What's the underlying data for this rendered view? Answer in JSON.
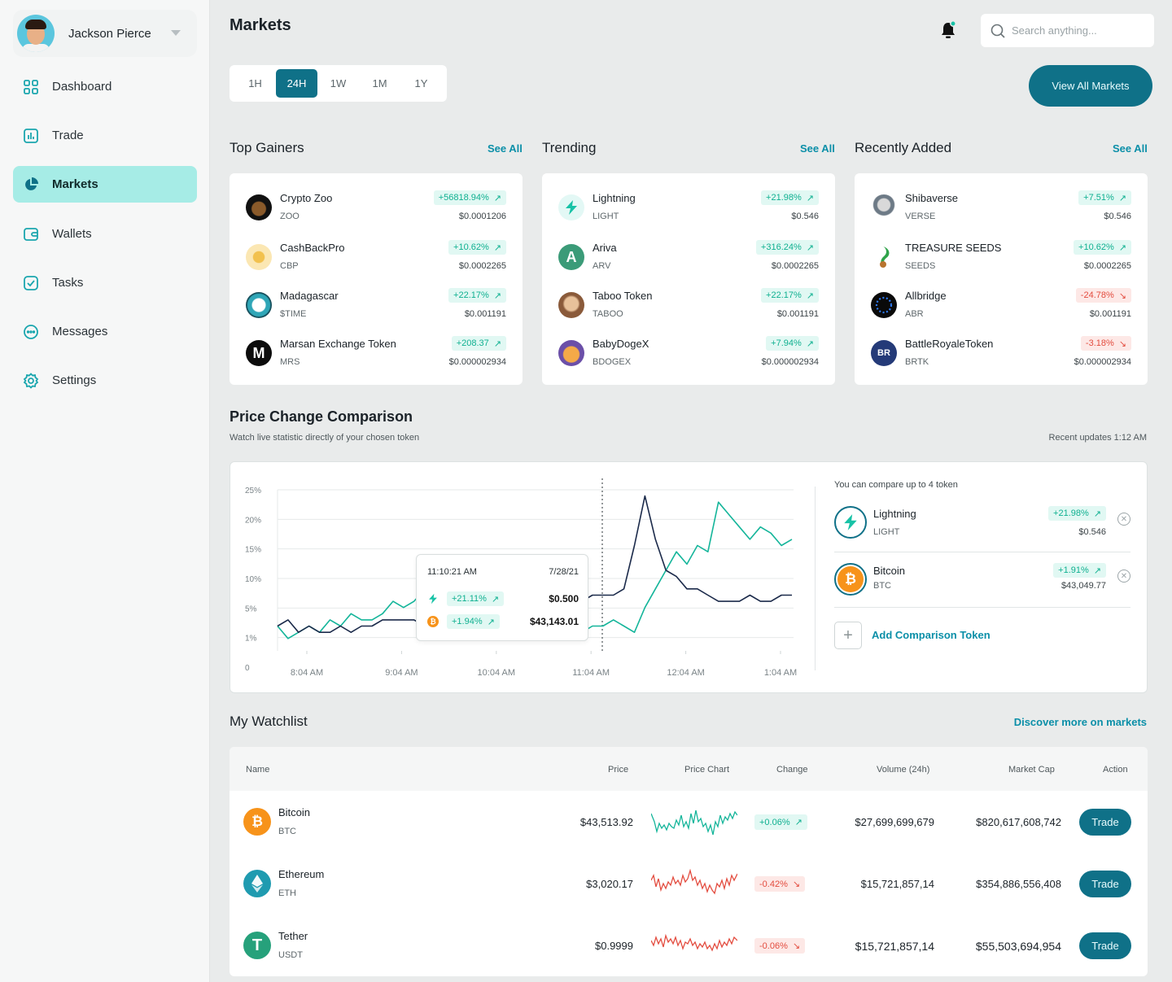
{
  "user": {
    "name": "Jackson Pierce"
  },
  "nav": [
    {
      "label": "Dashboard",
      "icon": "grid-icon"
    },
    {
      "label": "Trade",
      "icon": "chart-bars-icon"
    },
    {
      "label": "Markets",
      "icon": "pie-chart-icon",
      "active": true
    },
    {
      "label": "Wallets",
      "icon": "wallet-icon"
    },
    {
      "label": "Tasks",
      "icon": "checkbox-icon"
    },
    {
      "label": "Messages",
      "icon": "message-icon"
    },
    {
      "label": "Settings",
      "icon": "gear-icon"
    }
  ],
  "header": {
    "title": "Markets",
    "search_placeholder": "Search anything..."
  },
  "timeframes": [
    "1H",
    "24H",
    "1W",
    "1M",
    "1Y"
  ],
  "active_timeframe": "24H",
  "view_all": "View All Markets",
  "see_all": "See All",
  "sections": {
    "top_gainers": {
      "title": "Top Gainers",
      "items": [
        {
          "name": "Crypto Zoo",
          "symbol": "ZOO",
          "change": "+56818.94%",
          "dir": "up",
          "price": "$0.0001206"
        },
        {
          "name": "CashBackPro",
          "symbol": "CBP",
          "change": "+10.62%",
          "dir": "up",
          "price": "$0.0002265"
        },
        {
          "name": "Madagascar",
          "symbol": "$TIME",
          "change": "+22.17%",
          "dir": "up",
          "price": "$0.001191"
        },
        {
          "name": "Marsan Exchange Token",
          "symbol": "MRS",
          "change": "+208.37",
          "dir": "up",
          "price": "$0.000002934"
        }
      ]
    },
    "trending": {
      "title": "Trending",
      "items": [
        {
          "name": "Lightning",
          "symbol": "LIGHT",
          "change": "+21.98%",
          "dir": "up",
          "price": "$0.546"
        },
        {
          "name": "Ariva",
          "symbol": "ARV",
          "change": "+316.24%",
          "dir": "up",
          "price": "$0.0002265"
        },
        {
          "name": "Taboo Token",
          "symbol": "TABOO",
          "change": "+22.17%",
          "dir": "up",
          "price": "$0.001191"
        },
        {
          "name": "BabyDogeX",
          "symbol": "BDOGEX",
          "change": "+7.94%",
          "dir": "up",
          "price": "$0.000002934"
        }
      ]
    },
    "recently_added": {
      "title": "Recently Added",
      "items": [
        {
          "name": "Shibaverse",
          "symbol": "VERSE",
          "change": "+7.51%",
          "dir": "up",
          "price": "$0.546"
        },
        {
          "name": "TREASURE SEEDS",
          "symbol": "SEEDS",
          "change": "+10.62%",
          "dir": "up",
          "price": "$0.0002265"
        },
        {
          "name": "Allbridge",
          "symbol": "ABR",
          "change": "-24.78%",
          "dir": "down",
          "price": "$0.001191"
        },
        {
          "name": "BattleRoyaleToken",
          "symbol": "BRTK",
          "change": "-3.18%",
          "dir": "down",
          "price": "$0.000002934"
        }
      ]
    }
  },
  "price_comparison": {
    "title": "Price Change Comparison",
    "subtitle": "Watch live statistic directly of your chosen token",
    "updated": "Recent updates 1:12 AM",
    "tooltip": {
      "time": "11:10:21 AM",
      "date": "7/28/21",
      "rows": [
        {
          "change": "+21.11%",
          "value": "$0.500"
        },
        {
          "change": "+1.94%",
          "value": "$43,143.01"
        }
      ]
    },
    "compare_note": "You can compare up to 4 token",
    "compare": [
      {
        "name": "Lightning",
        "symbol": "LIGHT",
        "change": "+21.98%",
        "price": "$0.546"
      },
      {
        "name": "Bitcoin",
        "symbol": "BTC",
        "change": "+1.91%",
        "price": "$43,049.77"
      }
    ],
    "add_label": "Add Comparison Token"
  },
  "chart_data": {
    "type": "line",
    "y_ticks": [
      "25%",
      "20%",
      "15%",
      "10%",
      "5%",
      "1%",
      "0"
    ],
    "x_ticks": [
      "8:04 AM",
      "9:04 AM",
      "10:04 AM",
      "11:04 AM",
      "12:04 AM",
      "1:04 AM"
    ],
    "colors": {
      "teal": "#14b59a",
      "navy": "#1b2a4a"
    },
    "series": [
      {
        "values": [
          4,
          2,
          3,
          4,
          3,
          5,
          4,
          6,
          5,
          5,
          6,
          8,
          7,
          8,
          10,
          7,
          8,
          4,
          5,
          4,
          5,
          7,
          8,
          6,
          9,
          10,
          10,
          7,
          5,
          3,
          4,
          4,
          5,
          4,
          3,
          7,
          10,
          13,
          16,
          14,
          17,
          16,
          24,
          22,
          20,
          18,
          20,
          19,
          17,
          18
        ]
      },
      {
        "values": [
          4,
          5,
          3,
          4,
          3,
          3,
          4,
          3,
          4,
          4,
          5,
          5,
          5,
          5,
          4,
          4,
          3,
          3,
          3,
          4,
          4,
          5,
          6,
          7,
          8,
          8,
          8,
          9,
          9,
          8,
          9,
          9,
          9,
          10,
          17,
          25,
          18,
          13,
          12,
          10,
          10,
          9,
          8,
          8,
          8,
          9,
          8,
          8,
          9,
          9
        ]
      }
    ]
  },
  "watchlist": {
    "title": "My Watchlist",
    "discover": "Discover more on markets",
    "headers": [
      "Name",
      "Price",
      "Price Chart",
      "Change",
      "Volume (24h)",
      "Market Cap",
      "Action"
    ],
    "rows": [
      {
        "name": "Bitcoin",
        "symbol": "BTC",
        "price": "$43,513.92",
        "change": "+0.06%",
        "dir": "up",
        "volume": "$27,699,699,679",
        "cap": "$820,617,608,742",
        "action": "Trade"
      },
      {
        "name": "Ethereum",
        "symbol": "ETH",
        "price": "$3,020.17",
        "change": "-0.42%",
        "dir": "down",
        "volume": "$15,721,857,14",
        "cap": "$354,886,556,408",
        "action": "Trade"
      },
      {
        "name": "Tether",
        "symbol": "USDT",
        "price": "$0.9999",
        "change": "-0.06%",
        "dir": "down",
        "volume": "$15,721,857,14",
        "cap": "$55,503,694,954",
        "action": "Trade"
      }
    ]
  }
}
